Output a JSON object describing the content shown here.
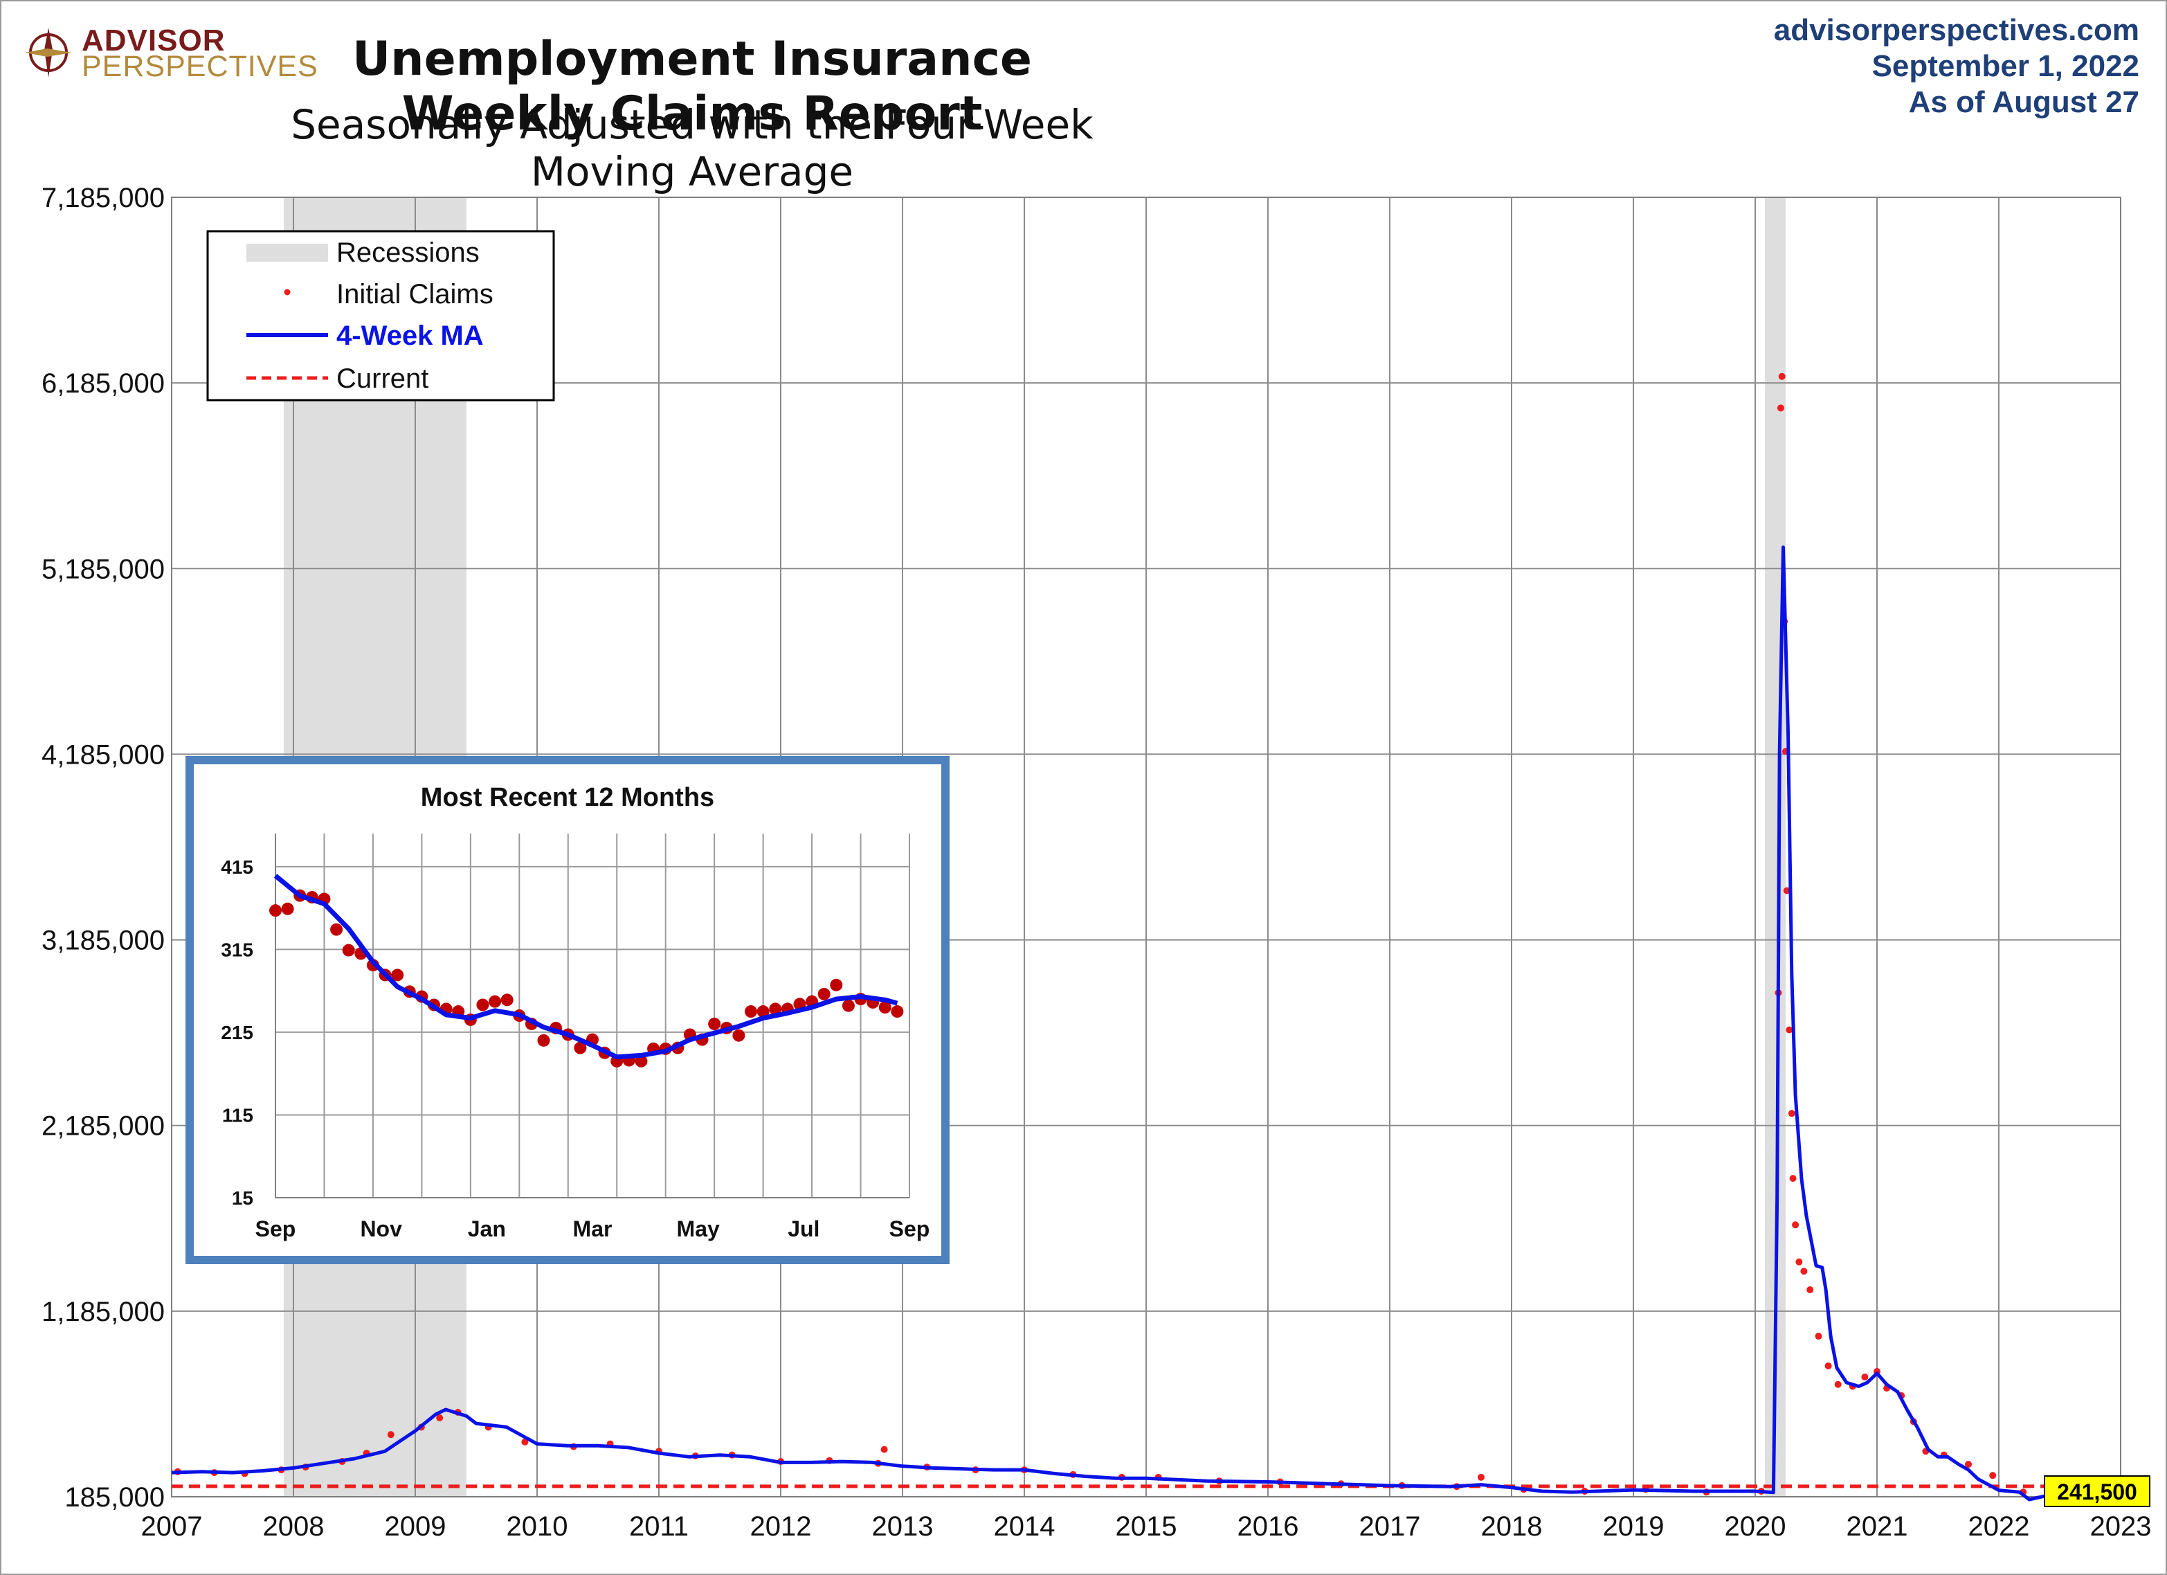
{
  "logo": {
    "top": "ADVISOR",
    "bottom": "PERSPECTIVES"
  },
  "header": {
    "title": "Unemployment Insurance Weekly Claims Report",
    "subtitle": "Seasonally Adjusted with the Four-Week Moving Average"
  },
  "meta": {
    "site": "advisorperspectives.com",
    "date": "September 1, 2022",
    "asof": "As of August 27"
  },
  "colors": {
    "recession": "#dedede",
    "claims": "#ee1c1c",
    "ma": "#0a12e6",
    "current": "#ee1c1c",
    "current_label_bg": "#ffff00",
    "inset_border": "#4f81bd",
    "inset_dots": "#c00000"
  },
  "legend": {
    "recessions": "Recessions",
    "claims": "Initial Claims",
    "ma": "4-Week MA",
    "current": "Current"
  },
  "chart_data": [
    {
      "type": "line",
      "xlim": [
        2007,
        2023
      ],
      "ylim": [
        185000,
        7185000
      ],
      "x_ticks": [
        2007,
        2008,
        2009,
        2010,
        2011,
        2012,
        2013,
        2014,
        2015,
        2016,
        2017,
        2018,
        2019,
        2020,
        2021,
        2022,
        2023
      ],
      "y_ticks": [
        "185,000",
        "1,185,000",
        "2,185,000",
        "3,185,000",
        "4,185,000",
        "5,185,000",
        "6,185,000",
        "7,185,000"
      ],
      "y_tick_values": [
        185000,
        1185000,
        2185000,
        3185000,
        4185000,
        5185000,
        6185000,
        7185000
      ],
      "grid": true,
      "legend_position": "top-left",
      "recessions": [
        [
          2007.92,
          2009.42
        ],
        [
          2020.08,
          2020.25
        ]
      ],
      "current": {
        "value": 241500,
        "label": "241,500"
      },
      "series": [
        {
          "name": "4-Week MA",
          "x": [
            2007.0,
            2007.25,
            2007.5,
            2007.75,
            2008.0,
            2008.25,
            2008.5,
            2008.75,
            2009.0,
            2009.17,
            2009.25,
            2009.42,
            2009.5,
            2009.75,
            2010.0,
            2010.25,
            2010.5,
            2010.75,
            2011.0,
            2011.25,
            2011.5,
            2011.75,
            2012.0,
            2012.25,
            2012.5,
            2012.75,
            2013.0,
            2013.25,
            2013.5,
            2013.75,
            2014.0,
            2014.25,
            2014.5,
            2014.75,
            2015.0,
            2015.5,
            2016.0,
            2016.5,
            2017.0,
            2017.5,
            2017.75,
            2018.0,
            2018.25,
            2018.5,
            2019.0,
            2019.5,
            2020.0,
            2020.15,
            2020.18,
            2020.2,
            2020.23,
            2020.27,
            2020.3,
            2020.33,
            2020.38,
            2020.42,
            2020.5,
            2020.55,
            2020.58,
            2020.62,
            2020.67,
            2020.75,
            2020.85,
            2020.92,
            2021.0,
            2021.08,
            2021.17,
            2021.25,
            2021.33,
            2021.42,
            2021.5,
            2021.58,
            2021.67,
            2021.75,
            2021.83,
            2022.0,
            2022.17,
            2022.25,
            2022.42,
            2022.5,
            2022.58,
            2022.67
          ],
          "y": [
            315000,
            320000,
            315000,
            325000,
            340000,
            365000,
            390000,
            430000,
            540000,
            630000,
            655000,
            620000,
            580000,
            560000,
            470000,
            460000,
            460000,
            450000,
            420000,
            400000,
            410000,
            400000,
            370000,
            370000,
            375000,
            370000,
            350000,
            340000,
            335000,
            330000,
            330000,
            310000,
            295000,
            285000,
            285000,
            270000,
            265000,
            255000,
            245000,
            240000,
            250000,
            235000,
            215000,
            210000,
            222000,
            215000,
            215000,
            208000,
            1800000,
            4200000,
            5300000,
            4300000,
            3000000,
            2350000,
            1900000,
            1700000,
            1430000,
            1420000,
            1300000,
            1050000,
            880000,
            800000,
            780000,
            800000,
            850000,
            790000,
            750000,
            650000,
            560000,
            440000,
            400000,
            400000,
            360000,
            330000,
            280000,
            220000,
            210000,
            170000,
            195000,
            230000,
            255000,
            242000
          ]
        },
        {
          "name": "Initial Claims",
          "x": [
            2007.05,
            2007.35,
            2007.6,
            2007.9,
            2008.1,
            2008.4,
            2008.6,
            2008.8,
            2009.05,
            2009.2,
            2009.35,
            2009.6,
            2009.9,
            2010.3,
            2010.6,
            2011.0,
            2011.3,
            2011.6,
            2012.0,
            2012.4,
            2012.8,
            2012.85,
            2013.2,
            2013.6,
            2014.0,
            2014.4,
            2014.8,
            2015.1,
            2015.6,
            2016.1,
            2016.6,
            2017.1,
            2017.55,
            2017.75,
            2018.1,
            2018.6,
            2019.1,
            2019.6,
            2020.05,
            2020.19,
            2020.21,
            2020.22,
            2020.24,
            2020.25,
            2020.26,
            2020.28,
            2020.3,
            2020.31,
            2020.33,
            2020.36,
            2020.4,
            2020.45,
            2020.52,
            2020.6,
            2020.68,
            2020.8,
            2020.9,
            2021.0,
            2021.08,
            2021.2,
            2021.3,
            2021.4,
            2021.55,
            2021.75,
            2021.95,
            2022.2,
            2022.4,
            2022.55,
            2022.65
          ],
          "y": [
            320000,
            315000,
            310000,
            330000,
            345000,
            375000,
            420000,
            520000,
            560000,
            610000,
            640000,
            560000,
            480000,
            455000,
            470000,
            430000,
            405000,
            410000,
            375000,
            380000,
            365000,
            440000,
            345000,
            330000,
            330000,
            305000,
            290000,
            290000,
            270000,
            265000,
            255000,
            245000,
            240000,
            290000,
            225000,
            215000,
            225000,
            210000,
            215000,
            2900000,
            6050000,
            6220000,
            4900000,
            4200000,
            3450000,
            2700000,
            2250000,
            1900000,
            1650000,
            1450000,
            1400000,
            1300000,
            1050000,
            890000,
            790000,
            780000,
            830000,
            860000,
            770000,
            730000,
            590000,
            430000,
            410000,
            360000,
            300000,
            210000,
            215000,
            255000,
            245000
          ]
        }
      ]
    },
    {
      "type": "scatter",
      "title": "Most Recent 12 Months",
      "x_ticks": [
        "Sep",
        "Nov",
        "Jan",
        "Mar",
        "May",
        "Jul",
        "Sep"
      ],
      "y_ticks": [
        "15",
        "115",
        "215",
        "315",
        "415"
      ],
      "y_tick_values": [
        15,
        115,
        215,
        315,
        415
      ],
      "ylim": [
        15,
        455
      ],
      "xlim": [
        0,
        52
      ],
      "series": [
        {
          "name": "Initial Claims",
          "x": [
            0,
            1,
            2,
            3,
            4,
            5,
            6,
            7,
            8,
            9,
            10,
            11,
            12,
            13,
            14,
            15,
            16,
            17,
            18,
            19,
            20,
            21,
            22,
            23,
            24,
            25,
            26,
            27,
            28,
            29,
            30,
            31,
            32,
            33,
            34,
            35,
            36,
            37,
            38,
            39,
            40,
            41,
            42,
            43,
            44,
            45,
            46,
            47,
            48,
            49,
            50,
            51
          ],
          "y": [
            362,
            364,
            380,
            378,
            376,
            339,
            314,
            310,
            296,
            284,
            284,
            264,
            258,
            248,
            243,
            240,
            230,
            248,
            252,
            254,
            235,
            225,
            205,
            220,
            212,
            196,
            206,
            190,
            180,
            181,
            180,
            195,
            195,
            196,
            212,
            206,
            225,
            220,
            211,
            240,
            240,
            243,
            243,
            249,
            252,
            261,
            272,
            247,
            255,
            251,
            245,
            240
          ]
        },
        {
          "name": "4-Week MA",
          "x": [
            0,
            2,
            4,
            6,
            8,
            10,
            12,
            14,
            16,
            18,
            20,
            22,
            24,
            26,
            28,
            30,
            32,
            34,
            36,
            38,
            40,
            42,
            44,
            46,
            48,
            50,
            51
          ],
          "y": [
            404,
            380,
            370,
            340,
            300,
            270,
            255,
            236,
            232,
            241,
            236,
            221,
            212,
            199,
            185,
            187,
            192,
            206,
            214,
            222,
            232,
            238,
            245,
            255,
            258,
            254,
            250
          ]
        }
      ]
    }
  ]
}
